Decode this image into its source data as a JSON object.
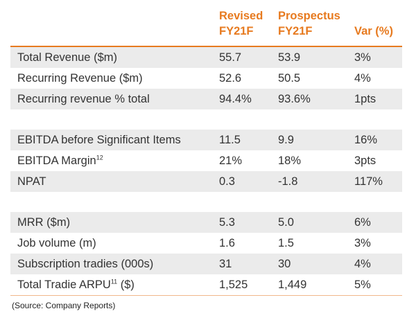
{
  "header": {
    "col1_line1": "Revised",
    "col1_line2": "FY21F",
    "col2_line1": "Prospectus",
    "col2_line2": "FY21F",
    "col3": "Var (%)"
  },
  "rows": [
    {
      "label": "Total Revenue ($m)",
      "sup": "",
      "revised": "55.7",
      "prospectus": "53.9",
      "var": "3%"
    },
    {
      "label": "Recurring Revenue ($m)",
      "sup": "",
      "revised": "52.6",
      "prospectus": "50.5",
      "var": "4%"
    },
    {
      "label": "Recurring revenue % total",
      "sup": "",
      "revised": "94.4%",
      "prospectus": "93.6%",
      "var": "1pts"
    },
    {
      "label": "EBITDA before Significant Items",
      "sup": "",
      "revised": "11.5",
      "prospectus": "9.9",
      "var": "16%"
    },
    {
      "label": "EBITDA Margin",
      "sup": "12",
      "revised": "21%",
      "prospectus": "18%",
      "var": "3pts"
    },
    {
      "label": "NPAT",
      "sup": "",
      "revised": "0.3",
      "prospectus": "-1.8",
      "var": "117%"
    },
    {
      "label": "MRR ($m)",
      "sup": "",
      "revised": "5.3",
      "prospectus": "5.0",
      "var": "6%"
    },
    {
      "label": "Job volume (m)",
      "sup": "",
      "revised": "1.6",
      "prospectus": "1.5",
      "var": "3%"
    },
    {
      "label": "Subscription tradies (000s)",
      "sup": "",
      "revised": "31",
      "prospectus": "30",
      "var": "4%"
    },
    {
      "label": "Total Tradie ARPU",
      "sup": "11",
      "revised": "1,525",
      "prospectus": "1,449",
      "var": "5%"
    }
  ],
  "source": "(Source: Company Reports)",
  "colors": {
    "accent": "#e77a1f",
    "shade": "#ebebeb"
  }
}
